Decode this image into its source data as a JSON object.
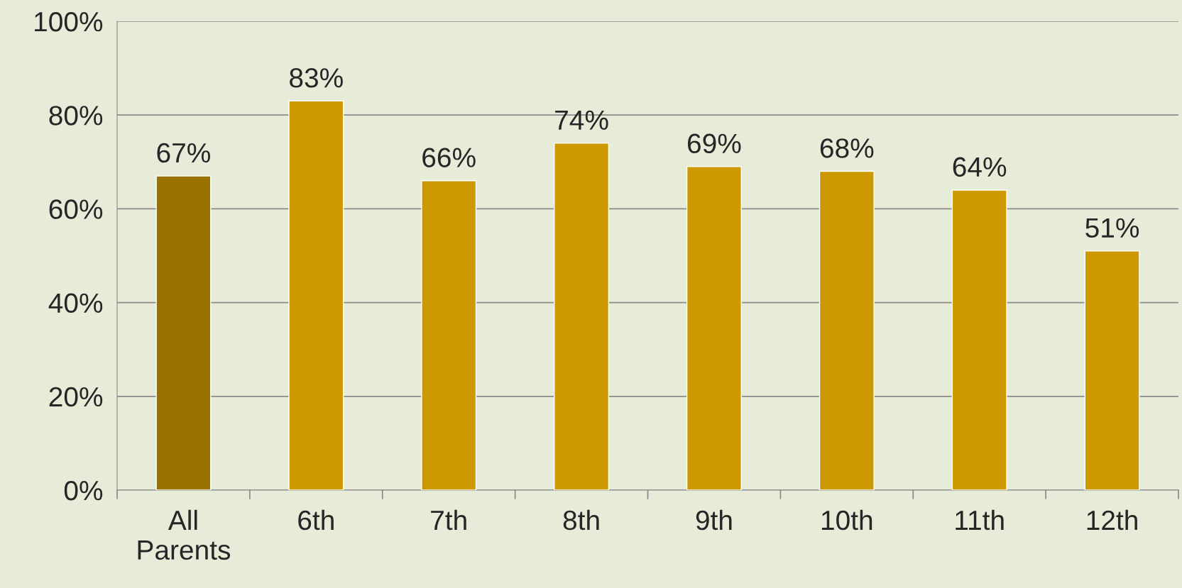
{
  "chart_data": {
    "type": "bar",
    "categories": [
      "All Parents",
      "6th",
      "7th",
      "8th",
      "9th",
      "10th",
      "11th",
      "12th"
    ],
    "values": [
      67,
      83,
      66,
      74,
      69,
      68,
      64,
      51
    ],
    "colors": [
      "#9a7200",
      "#cc9900",
      "#cc9900",
      "#cc9900",
      "#cc9900",
      "#cc9900",
      "#cc9900",
      "#cc9900"
    ],
    "value_labels": [
      "67%",
      "83%",
      "66%",
      "74%",
      "69%",
      "68%",
      "64%",
      "51%"
    ],
    "ylim": [
      0,
      100
    ],
    "yticks": [
      {
        "value": 0,
        "label": "0%"
      },
      {
        "value": 20,
        "label": "20%"
      },
      {
        "value": 40,
        "label": "40%"
      },
      {
        "value": 60,
        "label": "60%"
      },
      {
        "value": 80,
        "label": "80%"
      },
      {
        "value": 100,
        "label": "100%"
      }
    ],
    "grid": "y"
  }
}
